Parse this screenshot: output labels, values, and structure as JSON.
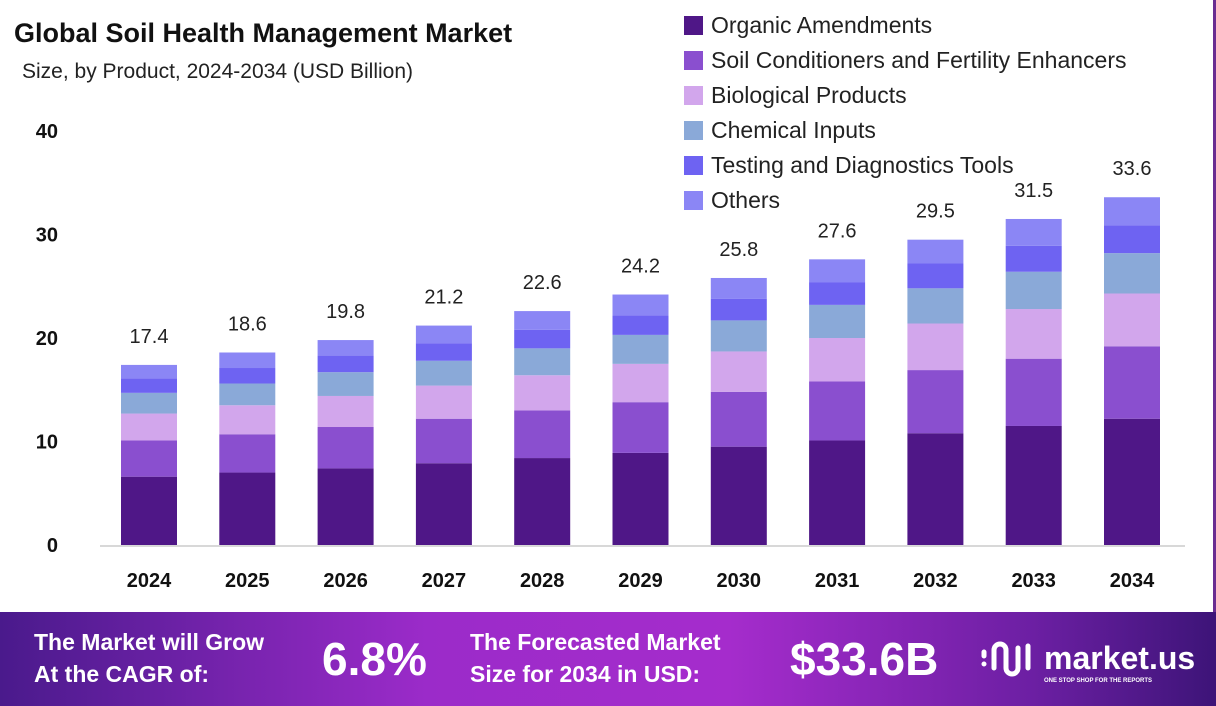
{
  "chart_data": {
    "type": "bar",
    "stacked": true,
    "title": "Global Soil Health Management  Market",
    "subtitle": "Size, by Product, 2024-2034 (USD Billion)",
    "categories": [
      "2024",
      "2025",
      "2026",
      "2027",
      "2028",
      "2029",
      "2030",
      "2031",
      "2032",
      "2033",
      "2034"
    ],
    "totals": [
      "17.4",
      "18.6",
      "19.8",
      "21.2",
      "22.6",
      "24.2",
      "25.8",
      "27.6",
      "29.5",
      "31.5",
      "33.6"
    ],
    "series": [
      {
        "name": "Organic Amendments",
        "color": "#4f1787",
        "values": [
          6.6,
          7.0,
          7.4,
          7.9,
          8.4,
          8.9,
          9.5,
          10.1,
          10.8,
          11.5,
          12.2
        ]
      },
      {
        "name": "Soil Conditioners and Fertility Enhancers",
        "color": "#8a4fcf",
        "values": [
          3.5,
          3.7,
          4.0,
          4.3,
          4.6,
          4.9,
          5.3,
          5.7,
          6.1,
          6.5,
          7.0
        ]
      },
      {
        "name": "Biological Products",
        "color": "#d2a6ec",
        "values": [
          2.6,
          2.8,
          3.0,
          3.2,
          3.4,
          3.7,
          3.9,
          4.2,
          4.5,
          4.8,
          5.1
        ]
      },
      {
        "name": "Chemical Inputs",
        "color": "#8aa9d8",
        "values": [
          2.0,
          2.1,
          2.3,
          2.4,
          2.6,
          2.8,
          3.0,
          3.2,
          3.4,
          3.6,
          3.9
        ]
      },
      {
        "name": "Testing and Diagnostics Tools",
        "color": "#6e63f2",
        "values": [
          1.4,
          1.5,
          1.6,
          1.7,
          1.8,
          1.9,
          2.1,
          2.2,
          2.4,
          2.5,
          2.7
        ]
      },
      {
        "name": "Others",
        "color": "#8b86f5",
        "values": [
          1.3,
          1.5,
          1.5,
          1.7,
          1.8,
          2.0,
          2.0,
          2.2,
          2.3,
          2.6,
          2.7
        ]
      }
    ],
    "yticks": [
      "0",
      "10",
      "20",
      "30",
      "40"
    ],
    "ylim": [
      0,
      40
    ],
    "grid": false,
    "legend": "top-right"
  },
  "footer": {
    "cagr_text_1": "The Market will Grow",
    "cagr_text_2": "At the CAGR of:",
    "cagr": "6.8%",
    "forecast_text_1": "The Forecasted Market",
    "forecast_text_2": "Size for 2034 in USD:",
    "forecast": "$33.6B",
    "logo": "market.us",
    "logo_tagline": "ONE STOP SHOP FOR THE REPORTS"
  }
}
